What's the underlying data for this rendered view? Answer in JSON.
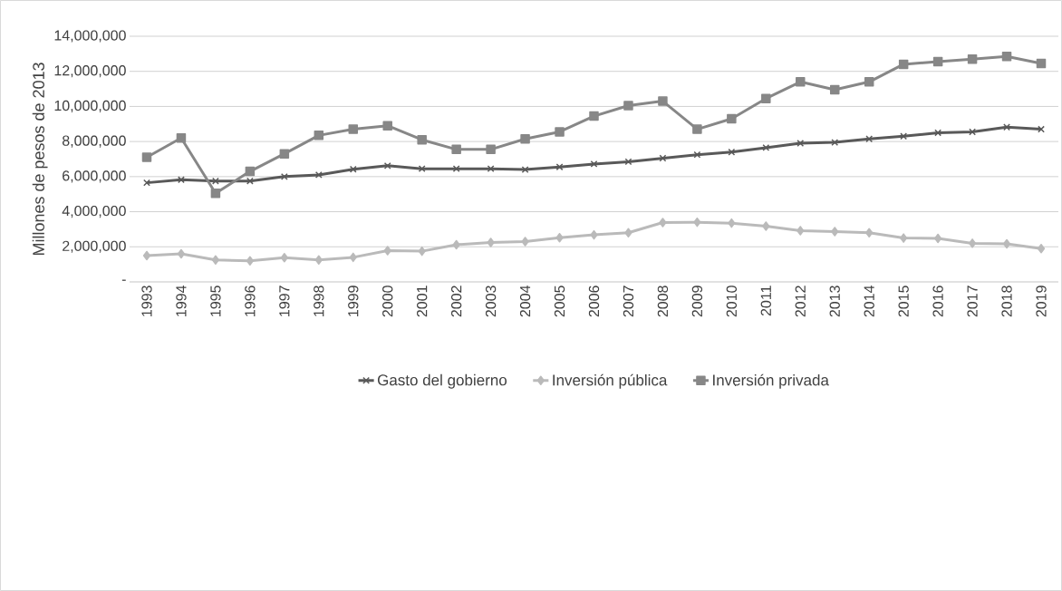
{
  "chart_data": {
    "type": "line",
    "ylabel": "Millones de pesos de 2013",
    "categories": [
      "1993",
      "1994",
      "1995",
      "1996",
      "1997",
      "1998",
      "1999",
      "2000",
      "2001",
      "2002",
      "2003",
      "2004",
      "2005",
      "2006",
      "2007",
      "2008",
      "2009",
      "2010",
      "2011",
      "2012",
      "2013",
      "2014",
      "2015",
      "2016",
      "2017",
      "2018",
      "2019"
    ],
    "series": [
      {
        "name": "Gasto del gobierno",
        "color": "#595959",
        "marker": "cross",
        "values": [
          5650000,
          5820000,
          5750000,
          5750000,
          6000000,
          6100000,
          6420000,
          6620000,
          6450000,
          6450000,
          6450000,
          6400000,
          6550000,
          6720000,
          6850000,
          7050000,
          7250000,
          7400000,
          7650000,
          7900000,
          7950000,
          8150000,
          8300000,
          8500000,
          8550000,
          8820000,
          8700000
        ]
      },
      {
        "name": "Inversión pública",
        "color": "#bababa",
        "marker": "diamond",
        "values": [
          1500000,
          1600000,
          1250000,
          1200000,
          1380000,
          1250000,
          1400000,
          1780000,
          1750000,
          2120000,
          2250000,
          2300000,
          2520000,
          2680000,
          2800000,
          3380000,
          3400000,
          3350000,
          3180000,
          2920000,
          2870000,
          2800000,
          2500000,
          2480000,
          2200000,
          2170000,
          1900000
        ]
      },
      {
        "name": "Inversión privada",
        "color": "#878787",
        "marker": "square",
        "values": [
          7100000,
          8200000,
          5050000,
          6300000,
          7300000,
          8350000,
          8700000,
          8900000,
          8100000,
          7550000,
          7550000,
          8150000,
          8550000,
          9450000,
          10050000,
          10300000,
          8700000,
          9300000,
          10450000,
          11400000,
          10950000,
          11400000,
          12400000,
          12550000,
          12700000,
          12850000,
          12450000
        ]
      }
    ],
    "ylim": [
      0,
      14000000
    ],
    "yticks": [
      {
        "value": 0,
        "label": "-"
      },
      {
        "value": 2000000,
        "label": "2,000,000"
      },
      {
        "value": 4000000,
        "label": "4,000,000"
      },
      {
        "value": 6000000,
        "label": "6,000,000"
      },
      {
        "value": 8000000,
        "label": "8,000,000"
      },
      {
        "value": 10000000,
        "label": "10,000,000"
      },
      {
        "value": 12000000,
        "label": "12,000,000"
      },
      {
        "value": 14000000,
        "label": "14,000,000"
      }
    ],
    "grid": "y",
    "legend": "bottom",
    "line_style": "solid"
  }
}
